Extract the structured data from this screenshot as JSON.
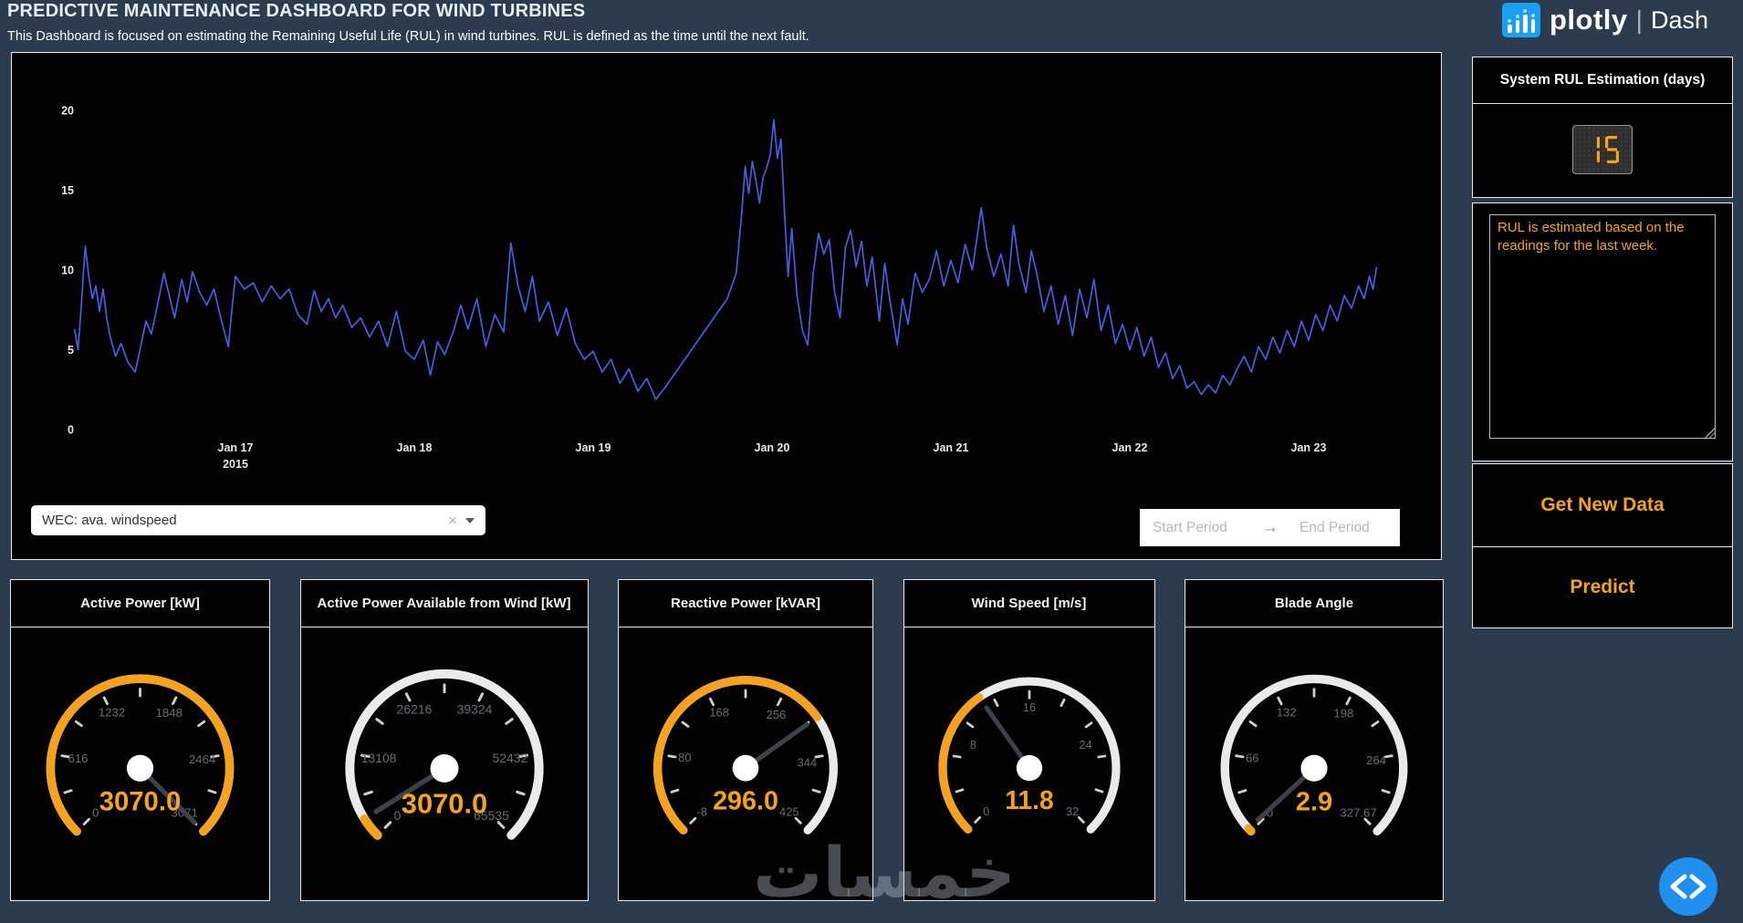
{
  "header": {
    "title": "PREDICTIVE MAINTENANCE DASHBOARD FOR WIND TURBINES",
    "subtitle": "This Dashboard is focused on estimating the Remaining Useful Life (RUL) in wind turbines. RUL is defined as the time until the next fault."
  },
  "logo": {
    "brand": "plotly",
    "divider": "|",
    "product": "Dash"
  },
  "controls": {
    "dropdown": {
      "value": "WEC: ava. windspeed",
      "clear_icon": "×"
    },
    "date_picker": {
      "start_placeholder": "Start Period",
      "end_placeholder": "End Period",
      "arrow": "→"
    }
  },
  "sidebar": {
    "panel_title": "System RUL Estimation (days)",
    "led_value": "15",
    "note": "RUL is estimated based on the readings for the last week.",
    "buttons": {
      "get_new_data": "Get New Data",
      "predict": "Predict"
    }
  },
  "chart_data": {
    "type": "line",
    "series_name": "WEC: ava. windspeed",
    "x_unit": "days offset from 2015-01-16 00:00",
    "ylim": [
      0,
      20
    ],
    "grid": false,
    "line_color": "#4a5ce0",
    "y_ticks": [
      0,
      5,
      10,
      15,
      20
    ],
    "x_ticks": [
      {
        "day": 1,
        "label": "Jan 17",
        "sublabel": "2015"
      },
      {
        "day": 2,
        "label": "Jan 18"
      },
      {
        "day": 3,
        "label": "Jan 19"
      },
      {
        "day": 4,
        "label": "Jan 20"
      },
      {
        "day": 5,
        "label": "Jan 21"
      },
      {
        "day": 6,
        "label": "Jan 22"
      },
      {
        "day": 7,
        "label": "Jan 23"
      }
    ],
    "points": [
      [
        0.1,
        6.3
      ],
      [
        0.12,
        5.0
      ],
      [
        0.14,
        8.0
      ],
      [
        0.16,
        11.5
      ],
      [
        0.18,
        9.6
      ],
      [
        0.2,
        8.2
      ],
      [
        0.22,
        9.0
      ],
      [
        0.24,
        7.4
      ],
      [
        0.26,
        8.8
      ],
      [
        0.28,
        7.0
      ],
      [
        0.3,
        5.8
      ],
      [
        0.33,
        4.6
      ],
      [
        0.36,
        5.4
      ],
      [
        0.4,
        4.2
      ],
      [
        0.44,
        3.6
      ],
      [
        0.47,
        5.2
      ],
      [
        0.5,
        6.8
      ],
      [
        0.53,
        6.0
      ],
      [
        0.56,
        7.6
      ],
      [
        0.6,
        9.8
      ],
      [
        0.63,
        8.4
      ],
      [
        0.66,
        7.0
      ],
      [
        0.7,
        9.4
      ],
      [
        0.73,
        8.0
      ],
      [
        0.76,
        9.9
      ],
      [
        0.8,
        8.6
      ],
      [
        0.84,
        7.8
      ],
      [
        0.88,
        8.8
      ],
      [
        0.92,
        6.9
      ],
      [
        0.96,
        5.2
      ],
      [
        0.98,
        7.5
      ],
      [
        1.0,
        9.6
      ],
      [
        1.05,
        8.8
      ],
      [
        1.1,
        9.2
      ],
      [
        1.15,
        8.0
      ],
      [
        1.2,
        9.0
      ],
      [
        1.25,
        8.2
      ],
      [
        1.3,
        8.8
      ],
      [
        1.35,
        7.2
      ],
      [
        1.4,
        6.6
      ],
      [
        1.44,
        8.7
      ],
      [
        1.48,
        7.4
      ],
      [
        1.52,
        8.2
      ],
      [
        1.56,
        7.0
      ],
      [
        1.6,
        7.8
      ],
      [
        1.65,
        6.4
      ],
      [
        1.7,
        7.0
      ],
      [
        1.75,
        5.8
      ],
      [
        1.8,
        6.8
      ],
      [
        1.85,
        5.2
      ],
      [
        1.9,
        7.4
      ],
      [
        1.95,
        4.9
      ],
      [
        2.0,
        4.4
      ],
      [
        2.05,
        5.6
      ],
      [
        2.09,
        3.4
      ],
      [
        2.13,
        5.5
      ],
      [
        2.17,
        4.7
      ],
      [
        2.22,
        6.2
      ],
      [
        2.26,
        7.8
      ],
      [
        2.3,
        6.3
      ],
      [
        2.35,
        8.2
      ],
      [
        2.4,
        5.2
      ],
      [
        2.45,
        7.2
      ],
      [
        2.5,
        6.1
      ],
      [
        2.54,
        11.7
      ],
      [
        2.58,
        9.0
      ],
      [
        2.62,
        7.4
      ],
      [
        2.66,
        9.6
      ],
      [
        2.7,
        6.8
      ],
      [
        2.75,
        8.0
      ],
      [
        2.8,
        5.9
      ],
      [
        2.85,
        7.6
      ],
      [
        2.9,
        5.4
      ],
      [
        2.95,
        4.4
      ],
      [
        3.0,
        4.9
      ],
      [
        3.05,
        3.6
      ],
      [
        3.1,
        4.4
      ],
      [
        3.15,
        2.9
      ],
      [
        3.2,
        3.8
      ],
      [
        3.25,
        2.4
      ],
      [
        3.3,
        3.2
      ],
      [
        3.35,
        1.9
      ],
      [
        3.4,
        2.6
      ],
      [
        3.45,
        3.4
      ],
      [
        3.5,
        4.2
      ],
      [
        3.55,
        5.0
      ],
      [
        3.6,
        5.8
      ],
      [
        3.65,
        6.6
      ],
      [
        3.7,
        7.4
      ],
      [
        3.75,
        8.2
      ],
      [
        3.8,
        9.8
      ],
      [
        3.83,
        13.5
      ],
      [
        3.85,
        16.5
      ],
      [
        3.87,
        14.8
      ],
      [
        3.89,
        16.8
      ],
      [
        3.91,
        15.6
      ],
      [
        3.93,
        14.2
      ],
      [
        3.95,
        15.8
      ],
      [
        3.97,
        16.4
      ],
      [
        3.99,
        17.2
      ],
      [
        4.01,
        19.4
      ],
      [
        4.03,
        17.0
      ],
      [
        4.05,
        18.2
      ],
      [
        4.07,
        13.6
      ],
      [
        4.09,
        9.6
      ],
      [
        4.11,
        12.6
      ],
      [
        4.14,
        8.4
      ],
      [
        4.17,
        6.2
      ],
      [
        4.2,
        5.3
      ],
      [
        4.23,
        9.8
      ],
      [
        4.26,
        12.3
      ],
      [
        4.29,
        11.0
      ],
      [
        4.32,
        11.9
      ],
      [
        4.35,
        8.6
      ],
      [
        4.38,
        7.0
      ],
      [
        4.41,
        11.4
      ],
      [
        4.44,
        12.5
      ],
      [
        4.47,
        10.2
      ],
      [
        4.5,
        11.8
      ],
      [
        4.53,
        9.0
      ],
      [
        4.56,
        10.8
      ],
      [
        4.6,
        6.8
      ],
      [
        4.63,
        10.4
      ],
      [
        4.66,
        8.0
      ],
      [
        4.7,
        5.3
      ],
      [
        4.73,
        8.2
      ],
      [
        4.76,
        6.6
      ],
      [
        4.8,
        9.8
      ],
      [
        4.84,
        8.6
      ],
      [
        4.88,
        9.4
      ],
      [
        4.92,
        11.2
      ],
      [
        4.96,
        9.0
      ],
      [
        5.0,
        10.6
      ],
      [
        5.04,
        9.2
      ],
      [
        5.08,
        11.6
      ],
      [
        5.12,
        10.0
      ],
      [
        5.17,
        13.9
      ],
      [
        5.2,
        11.4
      ],
      [
        5.24,
        9.6
      ],
      [
        5.28,
        11.0
      ],
      [
        5.32,
        9.0
      ],
      [
        5.35,
        12.8
      ],
      [
        5.38,
        10.4
      ],
      [
        5.42,
        8.6
      ],
      [
        5.45,
        11.2
      ],
      [
        5.48,
        9.8
      ],
      [
        5.52,
        7.4
      ],
      [
        5.56,
        9.0
      ],
      [
        5.6,
        6.6
      ],
      [
        5.64,
        8.4
      ],
      [
        5.68,
        5.9
      ],
      [
        5.72,
        8.8
      ],
      [
        5.76,
        7.0
      ],
      [
        5.8,
        9.4
      ],
      [
        5.84,
        6.2
      ],
      [
        5.88,
        7.8
      ],
      [
        5.92,
        5.4
      ],
      [
        5.96,
        6.6
      ],
      [
        6.0,
        5.0
      ],
      [
        6.04,
        6.4
      ],
      [
        6.08,
        4.6
      ],
      [
        6.12,
        5.8
      ],
      [
        6.16,
        3.9
      ],
      [
        6.2,
        4.8
      ],
      [
        6.24,
        3.2
      ],
      [
        6.28,
        4.0
      ],
      [
        6.32,
        2.6
      ],
      [
        6.36,
        3.0
      ],
      [
        6.4,
        2.2
      ],
      [
        6.44,
        2.8
      ],
      [
        6.48,
        2.3
      ],
      [
        6.52,
        3.4
      ],
      [
        6.56,
        2.8
      ],
      [
        6.6,
        3.8
      ],
      [
        6.64,
        4.6
      ],
      [
        6.68,
        3.6
      ],
      [
        6.72,
        5.2
      ],
      [
        6.76,
        4.4
      ],
      [
        6.8,
        5.8
      ],
      [
        6.84,
        4.8
      ],
      [
        6.88,
        6.2
      ],
      [
        6.92,
        5.2
      ],
      [
        6.96,
        6.8
      ],
      [
        7.0,
        5.6
      ],
      [
        7.04,
        7.2
      ],
      [
        7.08,
        6.2
      ],
      [
        7.12,
        7.8
      ],
      [
        7.16,
        6.8
      ],
      [
        7.2,
        8.4
      ],
      [
        7.24,
        7.6
      ],
      [
        7.28,
        9.0
      ],
      [
        7.31,
        8.2
      ],
      [
        7.34,
        9.6
      ],
      [
        7.36,
        8.8
      ],
      [
        7.38,
        10.2
      ]
    ]
  },
  "gauges": [
    {
      "title": "Active Power [kW]",
      "min": 0,
      "max": 3071,
      "value": 3070.0,
      "value_display": "3070.0",
      "tick_labels": [
        "0",
        "616",
        "1232",
        "1848",
        "2464",
        "3071"
      ]
    },
    {
      "title": "Active Power Available from Wind [kW]",
      "min": 0,
      "max": 65535,
      "value": 3070.0,
      "value_display": "3070.0",
      "tick_labels": [
        "0",
        "13108",
        "26216",
        "39324",
        "52432",
        "65535"
      ]
    },
    {
      "title": "Reactive Power [kVAR]",
      "min": -8,
      "max": 425,
      "value": 296.0,
      "value_display": "296.0",
      "tick_labels": [
        "-8",
        "80",
        "168",
        "256",
        "344",
        "425"
      ]
    },
    {
      "title": "Wind Speed [m/s]",
      "min": 0,
      "max": 32,
      "value": 11.8,
      "value_display": "11.8",
      "tick_labels": [
        "0",
        "8",
        "16",
        "24",
        "32"
      ]
    },
    {
      "title": "Blade Angle",
      "min": 0,
      "max": 327.67,
      "value": 2.9,
      "value_display": "2.9",
      "tick_labels": [
        "0",
        "66",
        "132",
        "198",
        "264",
        "327.67"
      ]
    }
  ],
  "watermark": "خمسات",
  "colors": {
    "page_bg": "#2c3b4e",
    "panel_bg": "#020203",
    "panel_border": "#e9e9e9",
    "accent_orange": "#f5a31f",
    "line_blue": "#4a5ce0",
    "logo_blue": "#1b9ff4",
    "code_button_blue": "#2090f0",
    "gauge_ring": "#eaeaea",
    "gauge_needle": "#3b424c",
    "gauge_label_gray": "#676e76"
  }
}
